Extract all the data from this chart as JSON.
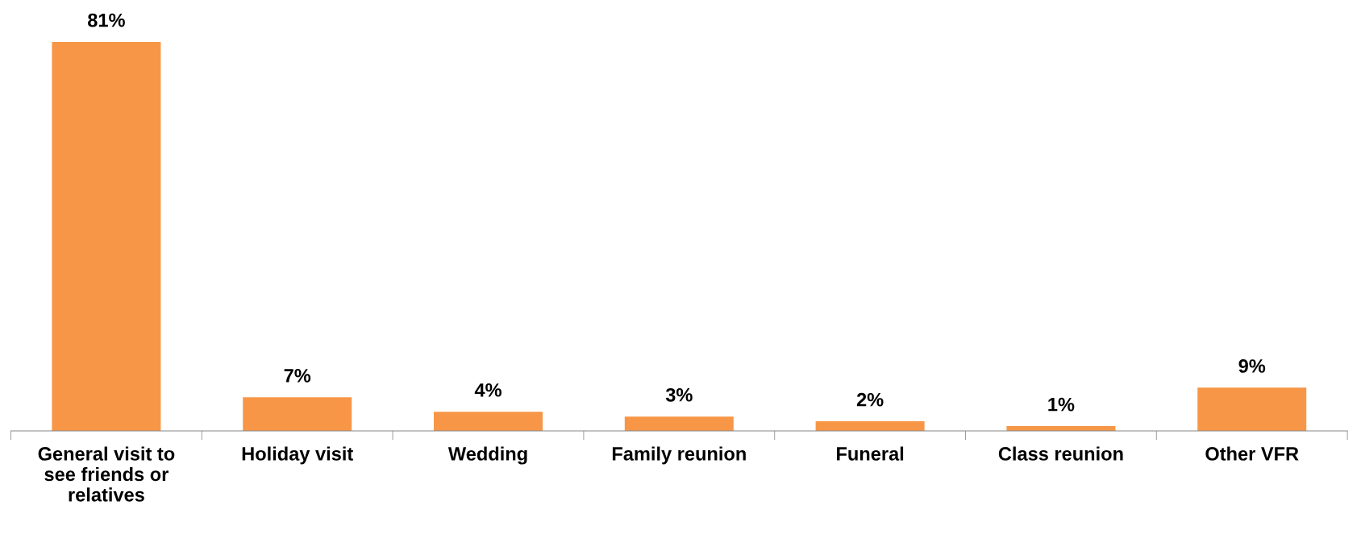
{
  "chart_data": {
    "type": "bar",
    "categories": [
      "General visit to see friends or relatives",
      "Holiday visit",
      "Wedding",
      "Family reunion",
      "Funeral",
      "Class reunion",
      "Other VFR"
    ],
    "values": [
      81,
      7,
      4,
      3,
      2,
      1,
      9
    ],
    "value_labels": [
      "81%",
      "7%",
      "4%",
      "3%",
      "2%",
      "1%",
      "9%"
    ],
    "color": "#f79646",
    "grid": false,
    "legend": false
  }
}
